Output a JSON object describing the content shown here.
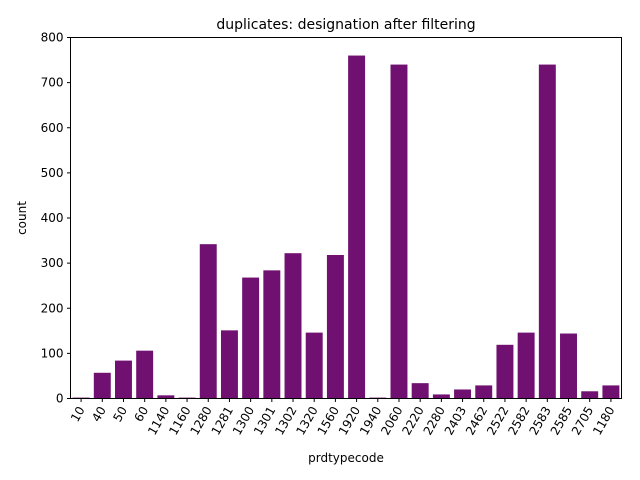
{
  "chart_data": {
    "type": "bar",
    "title": "duplicates: designation after filtering",
    "xlabel": "prdtypecode",
    "ylabel": "count",
    "ylim": [
      0,
      800
    ],
    "yticks": [
      0,
      100,
      200,
      300,
      400,
      500,
      600,
      700,
      800
    ],
    "grid": false,
    "bar_color": "#701070",
    "categories": [
      "10",
      "40",
      "50",
      "60",
      "1140",
      "1160",
      "1280",
      "1281",
      "1300",
      "1301",
      "1302",
      "1320",
      "1560",
      "1920",
      "1940",
      "2060",
      "2220",
      "2280",
      "2403",
      "2462",
      "2522",
      "2582",
      "2583",
      "2585",
      "2705",
      "1180"
    ],
    "values": [
      2,
      57,
      84,
      106,
      7,
      2,
      342,
      151,
      268,
      284,
      322,
      146,
      318,
      760,
      2,
      740,
      34,
      9,
      20,
      29,
      119,
      146,
      740,
      144,
      16,
      29
    ]
  }
}
